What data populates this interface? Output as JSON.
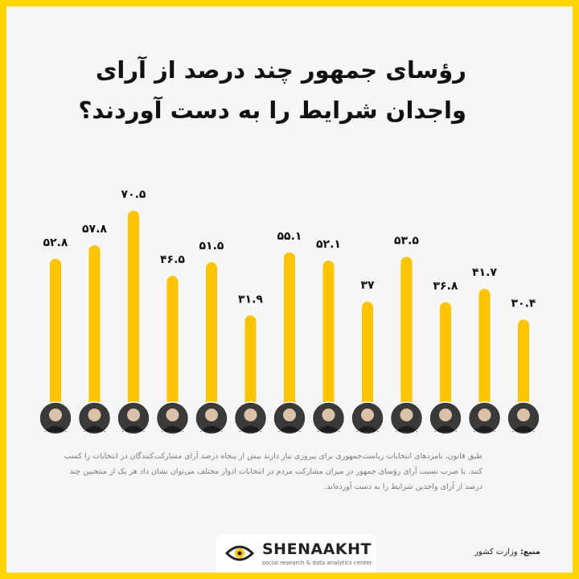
{
  "title_lines": [
    "رؤسای جمهور چند درصد از آرای",
    "واجدان شرایط را به دست آوردند؟"
  ],
  "description": "طبق قانون، نامزدهای انتخابات ریاست‌جمهوری برای پیروزی نیاز دارند بیش از پنجاه درصد آرای مشارکت‌کنندگان در انتخابات را کسب کنند. با ضرب نسبت آرای رؤسای جمهور در میزان مشارکت مردم در انتخابات ادوار مختلف می‌توان نشان داد هر یک از منتخبین چند درصد از آرای واجدین شرایط را به دست آورده‌اند.",
  "source": {
    "label": "منبع:",
    "value": "وزارت کشور"
  },
  "brand": {
    "name": "SHENAAKHT",
    "tagline": "social research & data analytics center"
  },
  "colors": {
    "frame": "#ffd400",
    "bar": "#ffc400",
    "background": "#f6f6f6"
  },
  "chart_data": {
    "type": "bar",
    "values": [
      52.8,
      57.8,
      70.5,
      46.5,
      51.5,
      31.9,
      55.1,
      52.1,
      37,
      53.5,
      36.8,
      41.7,
      30.4
    ],
    "value_labels": [
      "۵۲.۸",
      "۵۷.۸",
      "۷۰.۵",
      "۴۶.۵",
      "۵۱.۵",
      "۳۱.۹",
      "۵۵.۱",
      "۵۲.۱",
      "۳۷",
      "۵۳.۵",
      "۳۶.۸",
      "۴۱.۷",
      "۳۰.۴"
    ],
    "category_icons": [
      "portrait-photo",
      "portrait-photo",
      "portrait-photo",
      "portrait-photo",
      "portrait-photo",
      "portrait-photo",
      "portrait-photo",
      "portrait-photo",
      "portrait-photo",
      "portrait-photo",
      "portrait-photo",
      "portrait-photo",
      "portrait-photo"
    ],
    "ylim": [
      0,
      70.5
    ],
    "grid": false,
    "legend": "none"
  }
}
